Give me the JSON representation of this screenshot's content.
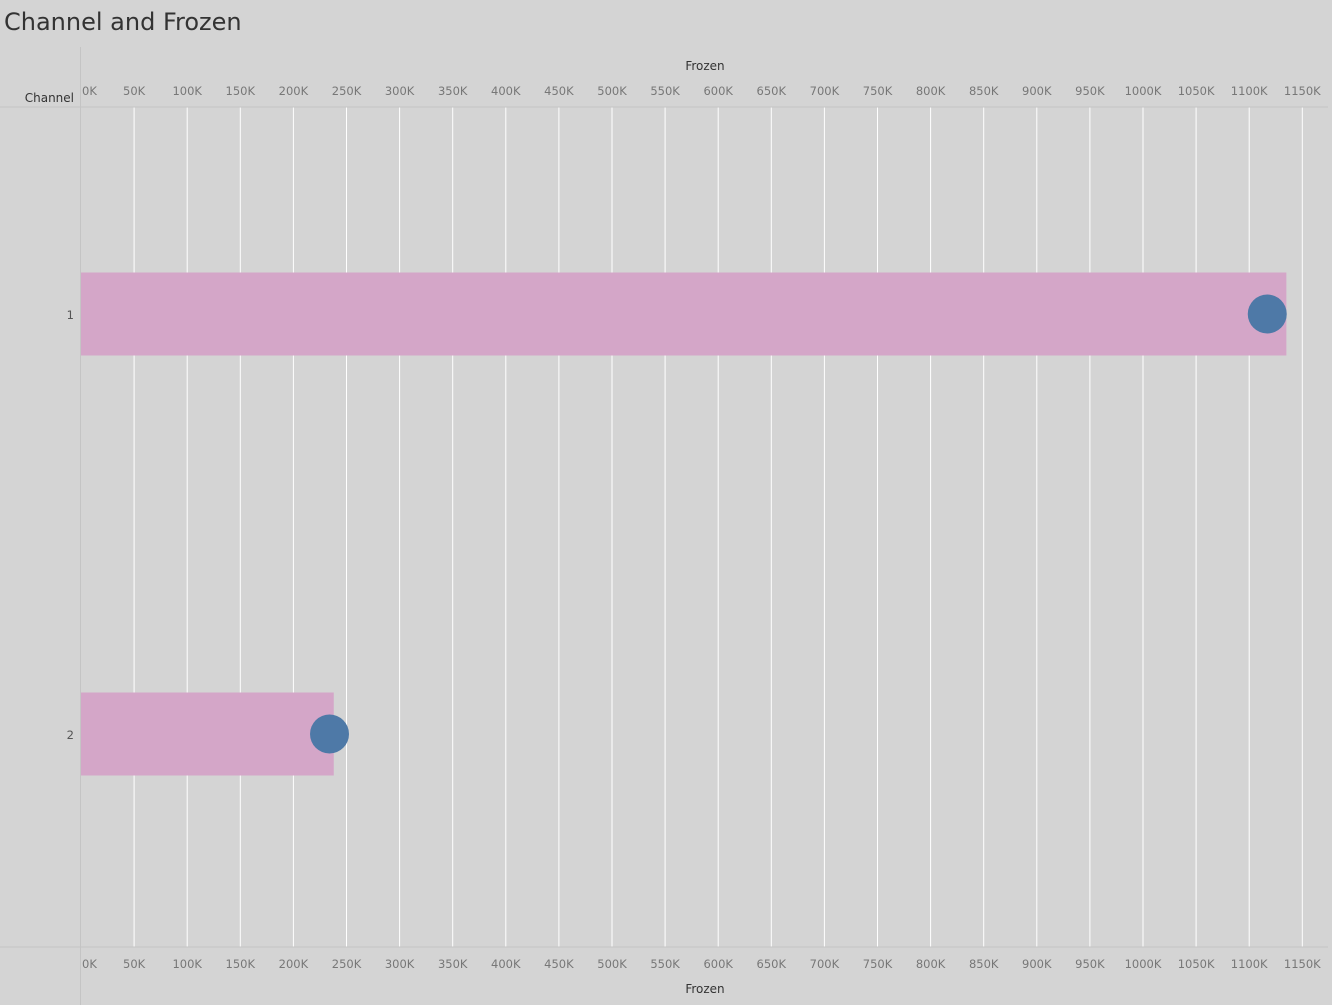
{
  "title": "Channel and Frozen",
  "colors": {
    "background": "#d4d4d4",
    "bar": "#d4a6c8",
    "circle": "#4e79a7",
    "gridline": "#ffffff"
  },
  "chart_data": {
    "type": "bar",
    "orientation": "horizontal",
    "title": "Channel and Frozen",
    "xlabel": "Frozen",
    "ylabel": "Channel",
    "categories": [
      "1",
      "2"
    ],
    "series": [
      {
        "values": [
          1135000,
          238000
        ]
      }
    ],
    "markers": [
      1117000,
      234000
    ],
    "xlim": [
      0,
      1175000
    ],
    "xticks": [
      0,
      50000,
      100000,
      150000,
      200000,
      250000,
      300000,
      350000,
      400000,
      450000,
      500000,
      550000,
      600000,
      650000,
      700000,
      750000,
      800000,
      850000,
      900000,
      950000,
      1000000,
      1050000,
      1100000,
      1150000
    ],
    "xtick_labels": [
      "0K",
      "50K",
      "100K",
      "150K",
      "200K",
      "250K",
      "300K",
      "350K",
      "400K",
      "450K",
      "500K",
      "550K",
      "600K",
      "650K",
      "700K",
      "750K",
      "800K",
      "850K",
      "900K",
      "950K",
      "1000K",
      "1050K",
      "1100K",
      "1150K"
    ],
    "grid": true,
    "axis_position": "top-and-bottom"
  }
}
